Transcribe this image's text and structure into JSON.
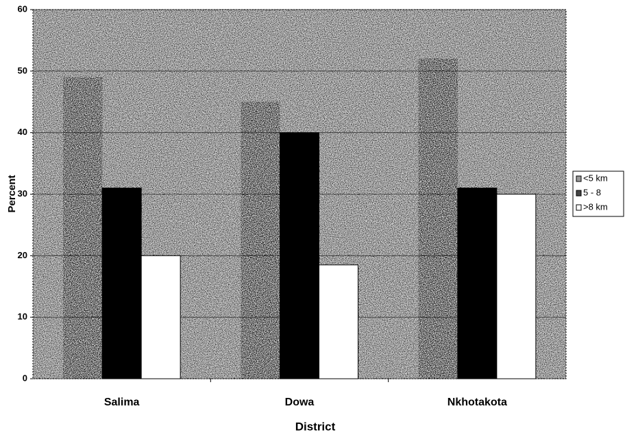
{
  "chart_data": {
    "type": "bar",
    "categories": [
      "Salima",
      "Dowa",
      "Nkhotakota"
    ],
    "series": [
      {
        "name": "<5 km",
        "color": "#9a9a9a",
        "values": [
          49,
          45,
          52
        ]
      },
      {
        "name": "5 - 8",
        "color": "#000000",
        "values": [
          31,
          40,
          31
        ]
      },
      {
        "name": ">8 km",
        "color": "#ffffff",
        "values": [
          20,
          18.5,
          30
        ]
      }
    ],
    "x_label": "District",
    "y_label": "Percent",
    "ylim": [
      0,
      60
    ],
    "yticks": [
      0,
      10,
      20,
      30,
      40,
      50,
      60
    ],
    "grid": true,
    "legend": "right"
  }
}
